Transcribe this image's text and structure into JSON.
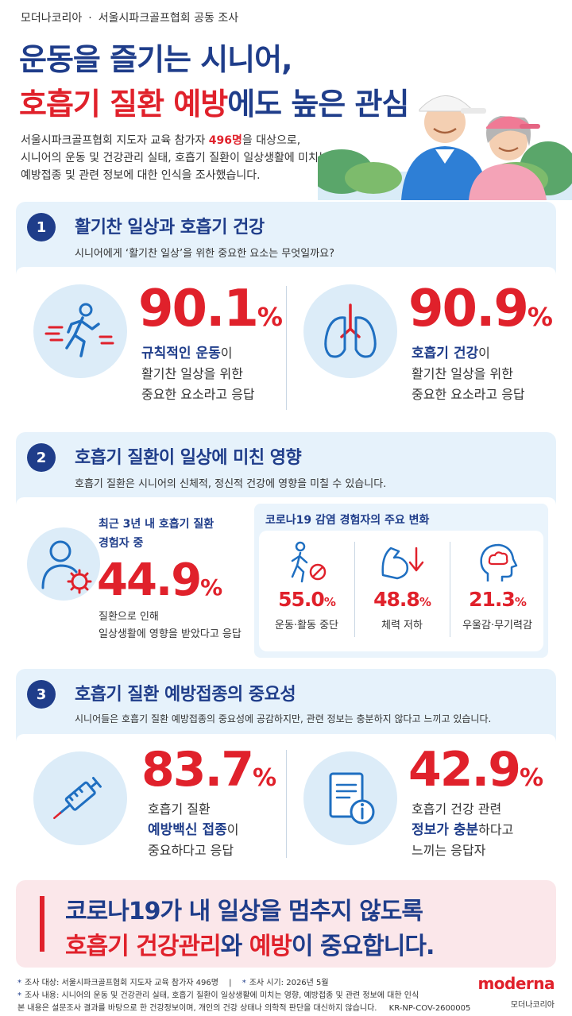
{
  "header": {
    "source_left": "모더나코리아",
    "source_dot": "·",
    "source_right": "서울시파크골프협회 공동 조사",
    "title_line1": "운동을 즐기는 시니어,",
    "title_line2_red": "호흡기 질환 예방",
    "title_line2_rest": "에도 높은 관심",
    "intro_a": "서울시파크골프협회 지도자 교육 참가자 ",
    "intro_count": "496명",
    "intro_b": "을 대상으로,",
    "intro_line2": "시니어의 운동 및 건강관리 실태, 호흡기 질환이 일상생활에 미치는",
    "intro_line3": "예방접종 및 관련 정보에 대한 인식을 조사했습니다."
  },
  "section1": {
    "num": "1",
    "title": "활기찬 일상과 호흡기 건강",
    "subtitle": "시니어에게 ‘활기찬 일상’을 위한 중요한 요소는 무엇일까요?",
    "left": {
      "icon": "running-person-icon",
      "value": "90.1",
      "unit": "%",
      "hl": "규칙적인 운동",
      "hl_suffix": "이",
      "line2": "활기찬 일상을 위한",
      "line3": "중요한 요소라고 응답"
    },
    "right": {
      "icon": "lungs-icon",
      "value": "90.9",
      "unit": "%",
      "hl": "호흡기 건강",
      "hl_suffix": "이",
      "line2": "활기찬 일상을 위한",
      "line3": "중요한 요소라고 응답"
    }
  },
  "section2": {
    "num": "2",
    "title": "호흡기 질환이 일상에 미친 영향",
    "subtitle": "호흡기 질환은 시니어의 신체적, 정신적 건강에 영향을 미칠 수 있습니다.",
    "left": {
      "icon": "person-virus-icon",
      "line1": "최근 3년 내 호흡기 질환",
      "line2": "경험자 중",
      "value": "44.9",
      "unit": "%",
      "line3": "질환으로 인해",
      "line4": "일상생활에 영향을 받았다고 응답"
    },
    "covid_box": {
      "title": "코로나19 감염 경험자의 주요 변화",
      "items": [
        {
          "icon": "walking-stop-icon",
          "value": "55.0",
          "unit": "%",
          "label": "운동·활동 중단"
        },
        {
          "icon": "muscle-down-icon",
          "value": "48.8",
          "unit": "%",
          "label": "체력 저하"
        },
        {
          "icon": "head-cloud-icon",
          "value": "21.3",
          "unit": "%",
          "label": "우울감·무기력감"
        }
      ]
    }
  },
  "section3": {
    "num": "3",
    "title": "호흡기 질환 예방접종의 중요성",
    "subtitle": "시니어들은 호흡기 질환 예방접종의 중요성에 공감하지만, 관련 정보는 충분하지 않다고 느끼고 있습니다.",
    "left": {
      "icon": "syringe-icon",
      "value": "83.7",
      "unit": "%",
      "line1": "호흡기 질환",
      "hl": "예방백신 접종",
      "hl_suffix": "이",
      "line3": "중요하다고 응답"
    },
    "right": {
      "icon": "document-info-icon",
      "value": "42.9",
      "unit": "%",
      "line1": "호흡기 건강 관련",
      "hl": "정보가 충분",
      "hl_suffix": "하다고",
      "line3": "느끼는 응답자"
    }
  },
  "closing": {
    "line1": "코로나19가 내 일상을 멈추지 않도록",
    "red1": "호흡기 건강관리",
    "mid": "와 ",
    "red2": "예방",
    "end": "이 중요합니다."
  },
  "footer": {
    "ast": "*",
    "line1a": "조사 대상: 서울시파크골프협회 지도자 교육 참가자 496명",
    "sep": "|",
    "line1b": "조사 시기: 2026년 5월",
    "line2": "조사 내용: 시니어의 운동 및 건강관리 실태, 호흡기 질환이 일상생활에 미치는 영향, 예방접종 및 관련 정보에 대한 인식",
    "line3": "본 내용은 설문조사 결과를 바탕으로 한 건강정보이며, 개인의 건강 상태나 의학적 판단을 대신하지 않습니다.",
    "code": "KR-NP-COV-2600005",
    "brand": "moderna",
    "brand_ko": "모더나코리아"
  },
  "colors": {
    "navy": "#1f3d8a",
    "red": "#e0212b",
    "section_bg": "#e6f2fb",
    "closing_bg": "#fbe7ea"
  }
}
